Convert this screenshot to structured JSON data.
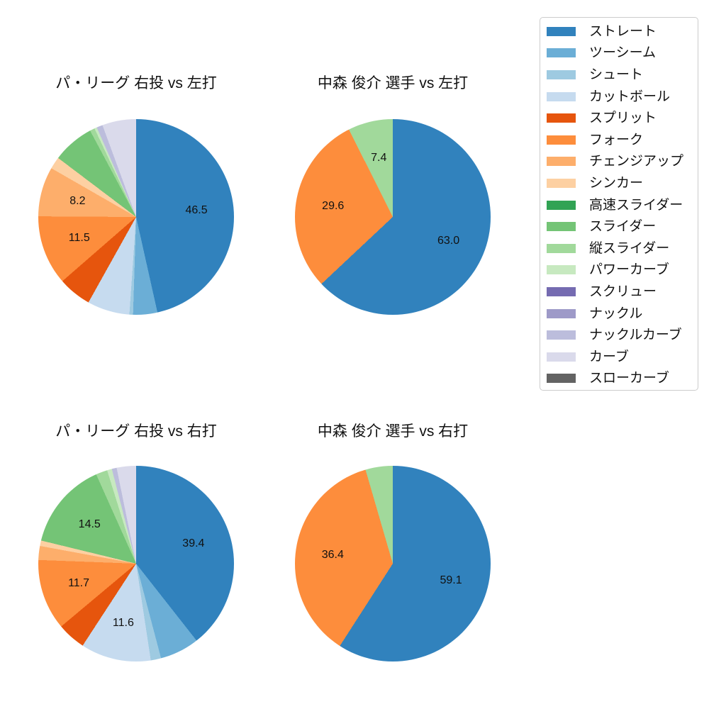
{
  "figure": {
    "background": "#ffffff"
  },
  "chart_data": {
    "type": "pie",
    "layout": "2x2 grid of pie charts with shared legend at upper right",
    "start_angle_deg": 90,
    "direction": "clockwise",
    "pct_label_radius_fraction": 0.62,
    "legend": {
      "position": "upper right",
      "entries": [
        {
          "label": "ストレート",
          "color": "#3182bd"
        },
        {
          "label": "ツーシーム",
          "color": "#6baed6"
        },
        {
          "label": "シュート",
          "color": "#9ecae1"
        },
        {
          "label": "カットボール",
          "color": "#c6dbef"
        },
        {
          "label": "スプリット",
          "color": "#e6550d"
        },
        {
          "label": "フォーク",
          "color": "#fd8d3c"
        },
        {
          "label": "チェンジアップ",
          "color": "#fdae6b"
        },
        {
          "label": "シンカー",
          "color": "#fdd0a2"
        },
        {
          "label": "高速スライダー",
          "color": "#31a354"
        },
        {
          "label": "スライダー",
          "color": "#74c476"
        },
        {
          "label": "縦スライダー",
          "color": "#a1d99b"
        },
        {
          "label": "パワーカーブ",
          "color": "#c7e9c0"
        },
        {
          "label": "スクリュー",
          "color": "#756bb1"
        },
        {
          "label": "ナックル",
          "color": "#9e9ac8"
        },
        {
          "label": "ナックルカーブ",
          "color": "#bcbddc"
        },
        {
          "label": "カーブ",
          "color": "#dadaeb"
        },
        {
          "label": "スローカーブ",
          "color": "#636363"
        }
      ]
    },
    "pies": [
      {
        "title": "パ・リーグ 右投 vs 左打",
        "slices": [
          {
            "label": "ストレート",
            "color": "#3182bd",
            "value": 46.5,
            "pct_label": "46.5"
          },
          {
            "label": "ツーシーム",
            "color": "#6baed6",
            "value": 4.0,
            "pct_label": null
          },
          {
            "label": "シュート",
            "color": "#9ecae1",
            "value": 0.6,
            "pct_label": null
          },
          {
            "label": "カットボール",
            "color": "#c6dbef",
            "value": 7.0,
            "pct_label": null
          },
          {
            "label": "スプリット",
            "color": "#e6550d",
            "value": 5.5,
            "pct_label": null
          },
          {
            "label": "フォーク",
            "color": "#fd8d3c",
            "value": 11.5,
            "pct_label": "11.5"
          },
          {
            "label": "チェンジアップ",
            "color": "#fdae6b",
            "value": 8.2,
            "pct_label": "8.2"
          },
          {
            "label": "シンカー",
            "color": "#fdd0a2",
            "value": 2.0,
            "pct_label": null
          },
          {
            "label": "スライダー",
            "color": "#74c476",
            "value": 6.9,
            "pct_label": null
          },
          {
            "label": "縦スライダー",
            "color": "#a1d99b",
            "value": 0.8,
            "pct_label": null
          },
          {
            "label": "パワーカーブ",
            "color": "#c7e9c0",
            "value": 0.4,
            "pct_label": null
          },
          {
            "label": "ナックルカーブ",
            "color": "#bcbddc",
            "value": 1.0,
            "pct_label": null
          },
          {
            "label": "カーブ",
            "color": "#dadaeb",
            "value": 5.6,
            "pct_label": null
          }
        ]
      },
      {
        "title": "中森 俊介 選手 vs 左打",
        "slices": [
          {
            "label": "ストレート",
            "color": "#3182bd",
            "value": 63.0,
            "pct_label": "63.0"
          },
          {
            "label": "フォーク",
            "color": "#fd8d3c",
            "value": 29.6,
            "pct_label": "29.6"
          },
          {
            "label": "縦スライダー",
            "color": "#a1d99b",
            "value": 7.4,
            "pct_label": "7.4"
          }
        ]
      },
      {
        "title": "パ・リーグ 右投 vs 右打",
        "slices": [
          {
            "label": "ストレート",
            "color": "#3182bd",
            "value": 39.4,
            "pct_label": "39.4"
          },
          {
            "label": "ツーシーム",
            "color": "#6baed6",
            "value": 6.5,
            "pct_label": null
          },
          {
            "label": "シュート",
            "color": "#9ecae1",
            "value": 1.7,
            "pct_label": null
          },
          {
            "label": "カットボール",
            "color": "#c6dbef",
            "value": 11.6,
            "pct_label": "11.6"
          },
          {
            "label": "スプリット",
            "color": "#e6550d",
            "value": 4.7,
            "pct_label": null
          },
          {
            "label": "フォーク",
            "color": "#fd8d3c",
            "value": 11.7,
            "pct_label": "11.7"
          },
          {
            "label": "チェンジアップ",
            "color": "#fdae6b",
            "value": 2.3,
            "pct_label": null
          },
          {
            "label": "シンカー",
            "color": "#fdd0a2",
            "value": 0.9,
            "pct_label": null
          },
          {
            "label": "スライダー",
            "color": "#74c476",
            "value": 14.5,
            "pct_label": "14.5"
          },
          {
            "label": "縦スライダー",
            "color": "#a1d99b",
            "value": 1.9,
            "pct_label": null
          },
          {
            "label": "パワーカーブ",
            "color": "#c7e9c0",
            "value": 0.8,
            "pct_label": null
          },
          {
            "label": "ナックルカーブ",
            "color": "#bcbddc",
            "value": 0.8,
            "pct_label": null
          },
          {
            "label": "カーブ",
            "color": "#dadaeb",
            "value": 3.2,
            "pct_label": null
          }
        ]
      },
      {
        "title": "中森 俊介 選手 vs 右打",
        "slices": [
          {
            "label": "ストレート",
            "color": "#3182bd",
            "value": 59.1,
            "pct_label": "59.1"
          },
          {
            "label": "フォーク",
            "color": "#fd8d3c",
            "value": 36.4,
            "pct_label": "36.4"
          },
          {
            "label": "縦スライダー",
            "color": "#a1d99b",
            "value": 4.5,
            "pct_label": null
          }
        ]
      }
    ]
  }
}
